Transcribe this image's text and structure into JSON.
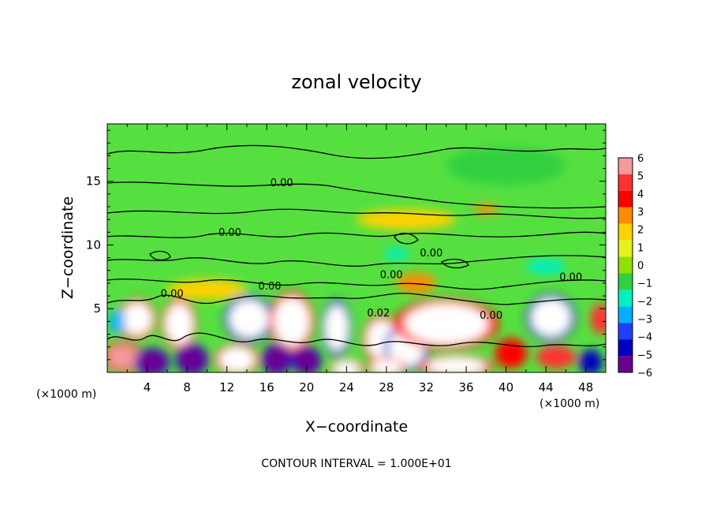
{
  "chart_data": {
    "type": "heatmap",
    "title": "zonal velocity",
    "xlabel": "X−coordinate",
    "ylabel": "Z−coordinate",
    "x_unit": "(×1000 m)",
    "x_unit_right": "(×1000 m)",
    "footer": "CONTOUR INTERVAL = 1.000E+01",
    "xlim": [
      0,
      50
    ],
    "ylim": [
      0,
      19.5
    ],
    "x_ticks": [
      4,
      8,
      12,
      16,
      20,
      24,
      28,
      32,
      36,
      40,
      44,
      48
    ],
    "x_tick_labels": [
      "4",
      "8",
      "12",
      "16",
      "20",
      "24",
      "28",
      "32",
      "36",
      "40",
      "44",
      "48"
    ],
    "y_ticks": [
      5,
      10,
      15
    ],
    "y_tick_labels": [
      "5",
      "10",
      "15"
    ],
    "colorbar": {
      "ticks": [
        6,
        5,
        4,
        3,
        2,
        1,
        0,
        -1,
        -2,
        -3,
        -4,
        -5,
        -6
      ],
      "tick_labels": [
        "6",
        "5",
        "4",
        "3",
        "2",
        "1",
        "0",
        "−1",
        "−2",
        "−3",
        "−4",
        "−5",
        "−6"
      ],
      "colors": [
        "#f49a9a",
        "#ff3030",
        "#ff0000",
        "#ff8c00",
        "#ffd200",
        "#e6f020",
        "#90e000",
        "#30d040",
        "#00f0c0",
        "#00b0ff",
        "#2040ff",
        "#0000c0",
        "#6a0090"
      ]
    },
    "contour_labels": [
      {
        "text": "0.00",
        "x": 17.5,
        "z": 14.6
      },
      {
        "text": "0.00",
        "x": 12.3,
        "z": 10.7
      },
      {
        "text": "0.00",
        "x": 32.5,
        "z": 9.1
      },
      {
        "text": "0.00",
        "x": 28.5,
        "z": 7.4
      },
      {
        "text": "0.00",
        "x": 46.5,
        "z": 7.2
      },
      {
        "text": "0.00",
        "x": 6.5,
        "z": 5.9
      },
      {
        "text": "0.00",
        "x": 16.3,
        "z": 6.5
      },
      {
        "text": "0.02",
        "x": 27.2,
        "z": 4.4
      },
      {
        "text": "0.00",
        "x": 38.5,
        "z": 4.2
      }
    ],
    "blobs": [
      {
        "x": 3,
        "z": 4.2,
        "v": 7,
        "rx": 1.5,
        "rz": 1.3
      },
      {
        "x": 7.2,
        "z": 3.8,
        "v": 7,
        "rx": 1.4,
        "rz": 1.6
      },
      {
        "x": 14.2,
        "z": 4.2,
        "v": -7,
        "rx": 2.0,
        "rz": 1.5
      },
      {
        "x": 18.5,
        "z": 4.0,
        "v": 7,
        "rx": 1.8,
        "rz": 1.9
      },
      {
        "x": 23,
        "z": 3.5,
        "v": -7,
        "rx": 1.2,
        "rz": 1.8
      },
      {
        "x": 27.5,
        "z": 2.6,
        "v": 7,
        "rx": 1.5,
        "rz": 1.5
      },
      {
        "x": 30,
        "z": 1.9,
        "v": -7,
        "rx": 1.8,
        "rz": 1.5
      },
      {
        "x": 34,
        "z": 3.8,
        "v": 7,
        "rx": 4.2,
        "rz": 1.6
      },
      {
        "x": 44.5,
        "z": 4.3,
        "v": -7,
        "rx": 2.0,
        "rz": 1.5
      },
      {
        "x": 49.5,
        "z": 4.2,
        "v": 5,
        "rx": 1.0,
        "rz": 1.2
      },
      {
        "x": 1.5,
        "z": 1.2,
        "v": 6,
        "rx": 1.5,
        "rz": 1.0
      },
      {
        "x": 4.5,
        "z": 0.8,
        "v": -6,
        "rx": 1.4,
        "rz": 0.9
      },
      {
        "x": 8.5,
        "z": 1.0,
        "v": -6,
        "rx": 1.3,
        "rz": 1.0
      },
      {
        "x": 13,
        "z": 1.0,
        "v": 7,
        "rx": 1.8,
        "rz": 1.0
      },
      {
        "x": 17,
        "z": 1.0,
        "v": -6,
        "rx": 1.2,
        "rz": 1.0
      },
      {
        "x": 20,
        "z": 0.9,
        "v": -6,
        "rx": 1.2,
        "rz": 0.9
      },
      {
        "x": 24,
        "z": 0.3,
        "v": 7,
        "rx": 1.4,
        "rz": 0.6
      },
      {
        "x": 28,
        "z": 0.4,
        "v": 7,
        "rx": 1.6,
        "rz": 0.6
      },
      {
        "x": 35,
        "z": 0.5,
        "v": 8,
        "rx": 3.0,
        "rz": 0.7
      },
      {
        "x": 40.5,
        "z": 1.5,
        "v": 4,
        "rx": 1.6,
        "rz": 1.2
      },
      {
        "x": 45,
        "z": 1.2,
        "v": 5,
        "rx": 2.0,
        "rz": 0.9
      },
      {
        "x": 48.5,
        "z": 0.8,
        "v": -5,
        "rx": 1.2,
        "rz": 1.0
      },
      {
        "x": 1,
        "z": 4.0,
        "v": -3,
        "rx": 0.8,
        "rz": 1.0
      },
      {
        "x": 38,
        "z": 12.8,
        "v": 3,
        "rx": 1.2,
        "rz": 0.4
      },
      {
        "x": 30,
        "z": 12.0,
        "v": 1.5,
        "rx": 5.0,
        "rz": 0.8
      },
      {
        "x": 44,
        "z": 8.3,
        "v": -2.5,
        "rx": 2.0,
        "rz": 0.6
      },
      {
        "x": 29,
        "z": 9.3,
        "v": -2.5,
        "rx": 1.2,
        "rz": 0.5
      },
      {
        "x": 31,
        "z": 7.0,
        "v": 3,
        "rx": 2.0,
        "rz": 0.8
      },
      {
        "x": 10,
        "z": 6.5,
        "v": 1.5,
        "rx": 4.0,
        "rz": 0.8
      },
      {
        "x": 40,
        "z": 16.2,
        "v": -1.2,
        "rx": 6.0,
        "rz": 1.5
      }
    ]
  }
}
